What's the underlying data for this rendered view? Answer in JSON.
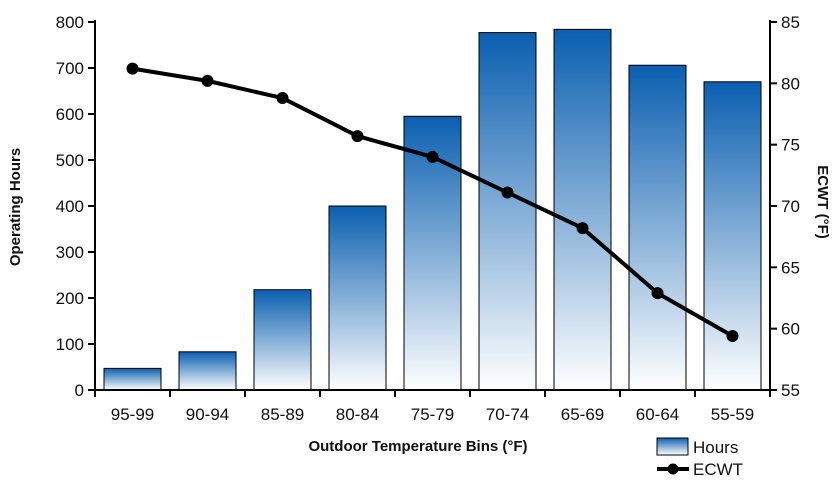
{
  "chart_data": {
    "type": "bar",
    "categories": [
      "95-99",
      "90-94",
      "85-89",
      "80-84",
      "75-79",
      "70-74",
      "65-69",
      "60-64",
      "55-59"
    ],
    "series": [
      {
        "name": "Hours",
        "type": "bar",
        "axis": "left",
        "values": [
          47,
          83,
          218,
          400,
          595,
          777,
          784,
          706,
          670
        ]
      },
      {
        "name": "ECWT",
        "type": "line",
        "axis": "right",
        "values": [
          81.2,
          80.2,
          78.8,
          75.7,
          74.0,
          71.1,
          68.2,
          62.9,
          59.4
        ]
      }
    ],
    "title": "",
    "xlabel": "Outdoor Temperature Bins (°F)",
    "ylabel": "Operating Hours",
    "y2label": "ECWT (°F)",
    "ylim": [
      0,
      800
    ],
    "y2lim": [
      55,
      85
    ],
    "yticks": [
      "0",
      "100",
      "200",
      "300",
      "400",
      "500",
      "600",
      "700",
      "800"
    ],
    "y2ticks": [
      "55",
      "60",
      "65",
      "70",
      "75",
      "80",
      "85"
    ],
    "legend": [
      "Hours",
      "ECWT"
    ],
    "legend_position": "bottom-right",
    "grid": false,
    "colors": {
      "bar_top": "#0a5fb0",
      "bar_bottom": "#ffffff",
      "line": "#000000"
    }
  }
}
